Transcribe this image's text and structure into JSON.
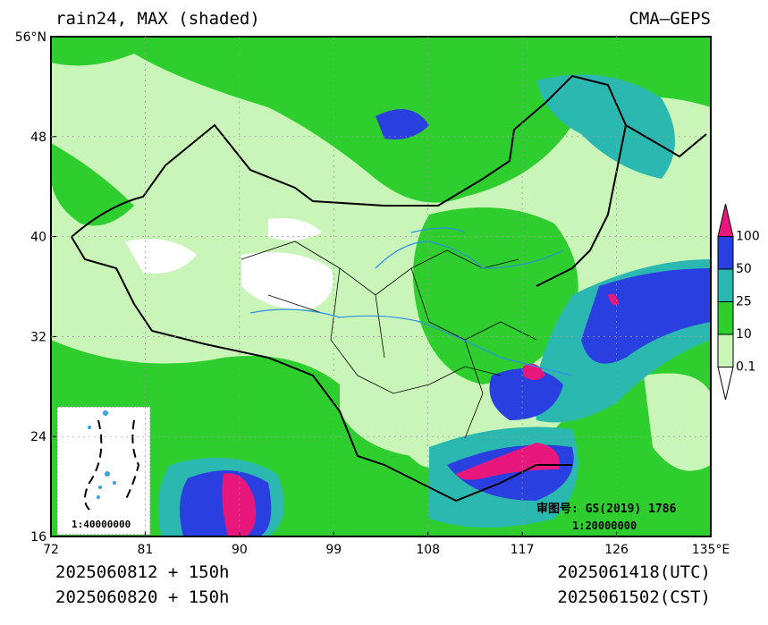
{
  "header": {
    "title": "rain24, MAX (shaded)",
    "source": "CMA—GEPS"
  },
  "axes": {
    "x_labels": [
      "72",
      "81",
      "90",
      "99",
      "108",
      "117",
      "126",
      "135°E"
    ],
    "y_labels": [
      "16",
      "24",
      "32",
      "40",
      "48",
      "56°N"
    ]
  },
  "legend": {
    "labels": [
      "0.1",
      "10",
      "25",
      "50",
      "100"
    ],
    "colors": [
      "#ffffff",
      "#c9f5b8",
      "#2fce2f",
      "#2bb8b0",
      "#2a3fe0",
      "#e8177c"
    ]
  },
  "map": {
    "inset_scale": "1:40000000",
    "approval": "审图号: GS(2019) 1786",
    "scale": "1:20000000"
  },
  "footer": {
    "init_utc": "2025060812 + 150h",
    "init_cst": "2025060820 + 150h",
    "valid_utc": "2025061418(UTC)",
    "valid_cst": "2025061502(CST)"
  }
}
